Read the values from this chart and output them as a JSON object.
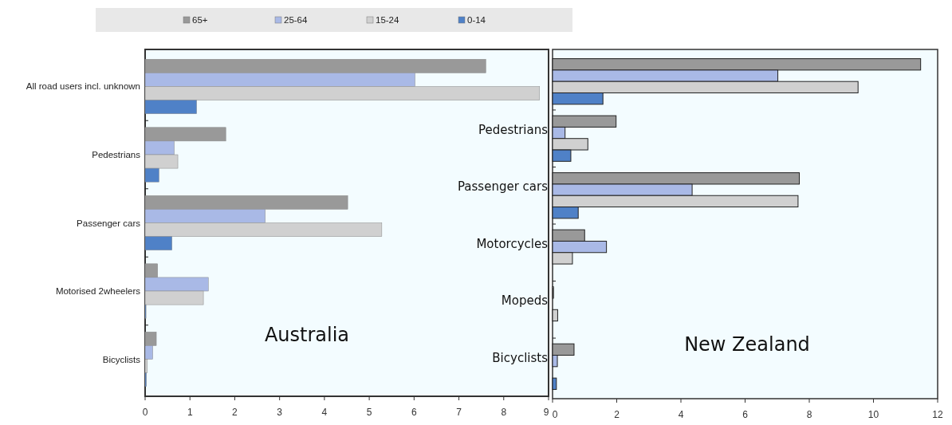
{
  "chart_data": [
    {
      "type": "bar",
      "orientation": "horizontal",
      "categories": [
        "All road users incl. unknown",
        "Pedestrians",
        "Passenger cars",
        "Motorised 2wheelers",
        "Bicyclists"
      ],
      "series": [
        {
          "name": "65+",
          "color": "#999999",
          "values": [
            7.6,
            1.8,
            4.52,
            0.28,
            0.25
          ]
        },
        {
          "name": "25-64",
          "color": "#a9b9e6",
          "values": [
            6.02,
            0.65,
            2.68,
            1.41,
            0.17
          ]
        },
        {
          "name": "15-24",
          "color": "#d0d0d0",
          "values": [
            8.8,
            0.73,
            5.28,
            1.3,
            0.05
          ]
        },
        {
          "name": "0-14",
          "color": "#4f81c7",
          "values": [
            1.15,
            0.31,
            0.6,
            0.02,
            0.03
          ]
        }
      ],
      "xlim": [
        0,
        9
      ],
      "xticks": [
        0,
        1,
        2,
        3,
        4,
        5,
        6,
        7,
        8,
        9
      ],
      "legend": "top",
      "annotations": [
        "Australia"
      ]
    },
    {
      "type": "bar",
      "orientation": "horizontal",
      "categories": [
        null,
        "Pedestrians",
        "Passenger cars",
        "Motorcycles",
        "Mopeds",
        "Bicyclists"
      ],
      "series": [
        {
          "color": "#999999",
          "values": [
            11.47,
            1.98,
            7.69,
            1.0,
            0.03,
            0.67
          ]
        },
        {
          "color": "#a9b9e6",
          "values": [
            7.02,
            0.39,
            4.35,
            1.68,
            0,
            0.15
          ]
        },
        {
          "color": "#d0d0d0",
          "values": [
            9.52,
            1.1,
            7.65,
            0.62,
            0.16,
            0
          ]
        },
        {
          "color": "#4f81c7",
          "values": [
            1.57,
            0.57,
            0.8,
            0,
            0,
            0.12
          ]
        }
      ],
      "xlim": [
        0,
        12
      ],
      "xticks": [
        0,
        2,
        4,
        6,
        8,
        10,
        12
      ],
      "annotations": [
        "New Zealand"
      ]
    }
  ]
}
